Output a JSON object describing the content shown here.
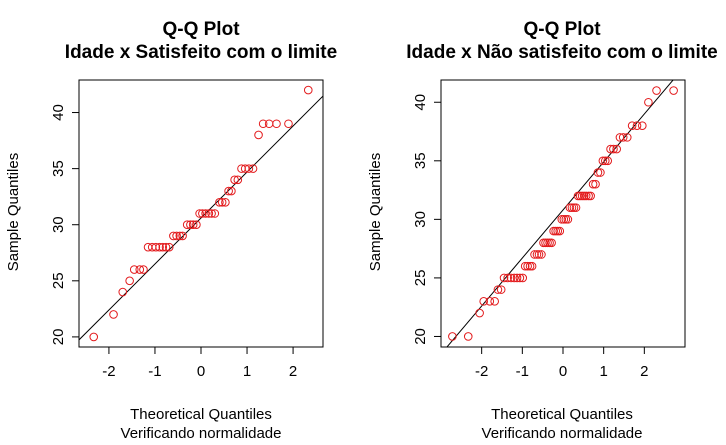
{
  "chart_data": [
    {
      "type": "scatter",
      "title": "Q-Q Plot",
      "subtitle": "Idade x Satisfeito com o limite",
      "xlabel": "Theoretical Quantiles",
      "xlabel_sub": "Verificando normalidade",
      "ylabel": "Sample Quantiles",
      "xlim": [
        -2.65,
        2.65
      ],
      "ylim": [
        19.1,
        42.9
      ],
      "xticks": [
        -2,
        -1,
        0,
        1,
        2
      ],
      "yticks": [
        20,
        25,
        30,
        35,
        40
      ],
      "grid": false,
      "point_color": "#e31a1c",
      "line_color": "#000000",
      "qqline": {
        "intercept": 30.6,
        "slope": 4.1
      },
      "points": [
        [
          -2.33,
          20
        ],
        [
          -1.9,
          22
        ],
        [
          -1.7,
          24
        ],
        [
          -1.55,
          25
        ],
        [
          -1.45,
          26
        ],
        [
          -1.33,
          26
        ],
        [
          -1.25,
          26
        ],
        [
          -1.15,
          28
        ],
        [
          -1.06,
          28
        ],
        [
          -0.98,
          28
        ],
        [
          -0.9,
          28
        ],
        [
          -0.83,
          28
        ],
        [
          -0.76,
          28
        ],
        [
          -0.69,
          28
        ],
        [
          -0.6,
          29
        ],
        [
          -0.53,
          29
        ],
        [
          -0.46,
          29
        ],
        [
          -0.4,
          29
        ],
        [
          -0.3,
          30
        ],
        [
          -0.23,
          30
        ],
        [
          -0.17,
          30
        ],
        [
          -0.1,
          30
        ],
        [
          -0.03,
          31
        ],
        [
          0.03,
          31
        ],
        [
          0.1,
          31
        ],
        [
          0.17,
          31
        ],
        [
          0.23,
          31
        ],
        [
          0.3,
          31
        ],
        [
          0.4,
          32
        ],
        [
          0.46,
          32
        ],
        [
          0.53,
          32
        ],
        [
          0.6,
          33
        ],
        [
          0.66,
          33
        ],
        [
          0.73,
          34
        ],
        [
          0.8,
          34
        ],
        [
          0.88,
          35
        ],
        [
          0.96,
          35
        ],
        [
          1.04,
          35
        ],
        [
          1.13,
          35
        ],
        [
          1.25,
          38
        ],
        [
          1.35,
          39
        ],
        [
          1.48,
          39
        ],
        [
          1.64,
          39
        ],
        [
          1.9,
          39
        ],
        [
          2.33,
          42
        ]
      ]
    },
    {
      "type": "scatter",
      "title": "Q-Q Plot",
      "subtitle": "Idade x Não satisfeito com o limite",
      "xlabel": "Theoretical Quantiles",
      "xlabel_sub": "Verificando normalidade",
      "ylabel": "Sample Quantiles",
      "xlim": [
        -3.0,
        3.0
      ],
      "ylim": [
        19.1,
        41.9
      ],
      "xticks": [
        -2,
        -1,
        0,
        1,
        2
      ],
      "yticks": [
        20,
        25,
        30,
        35,
        40
      ],
      "grid": false,
      "point_color": "#e31a1c",
      "line_color": "#000000",
      "qqline": {
        "intercept": 30.8,
        "slope": 4.1
      },
      "points": [
        [
          -2.72,
          20
        ],
        [
          -2.33,
          20
        ],
        [
          -2.05,
          22
        ],
        [
          -1.95,
          23
        ],
        [
          -1.8,
          23
        ],
        [
          -1.68,
          23
        ],
        [
          -1.6,
          24
        ],
        [
          -1.52,
          24
        ],
        [
          -1.45,
          25
        ],
        [
          -1.36,
          25
        ],
        [
          -1.28,
          25
        ],
        [
          -1.2,
          25
        ],
        [
          -1.13,
          25
        ],
        [
          -1.06,
          25
        ],
        [
          -0.99,
          25
        ],
        [
          -0.93,
          26
        ],
        [
          -0.87,
          26
        ],
        [
          -0.81,
          26
        ],
        [
          -0.76,
          26
        ],
        [
          -0.7,
          27
        ],
        [
          -0.64,
          27
        ],
        [
          -0.59,
          27
        ],
        [
          -0.53,
          27
        ],
        [
          -0.48,
          28
        ],
        [
          -0.43,
          28
        ],
        [
          -0.38,
          28
        ],
        [
          -0.33,
          28
        ],
        [
          -0.28,
          28
        ],
        [
          -0.23,
          29
        ],
        [
          -0.18,
          29
        ],
        [
          -0.13,
          29
        ],
        [
          -0.08,
          29
        ],
        [
          -0.03,
          30
        ],
        [
          0.02,
          30
        ],
        [
          0.07,
          30
        ],
        [
          0.12,
          30
        ],
        [
          0.17,
          31
        ],
        [
          0.22,
          31
        ],
        [
          0.27,
          31
        ],
        [
          0.32,
          31
        ],
        [
          0.37,
          32
        ],
        [
          0.42,
          32
        ],
        [
          0.47,
          32
        ],
        [
          0.52,
          32
        ],
        [
          0.57,
          32
        ],
        [
          0.63,
          32
        ],
        [
          0.68,
          32
        ],
        [
          0.74,
          33
        ],
        [
          0.8,
          33
        ],
        [
          0.86,
          34
        ],
        [
          0.92,
          34
        ],
        [
          0.98,
          35
        ],
        [
          1.04,
          35
        ],
        [
          1.1,
          35
        ],
        [
          1.17,
          36
        ],
        [
          1.24,
          36
        ],
        [
          1.32,
          36
        ],
        [
          1.4,
          37
        ],
        [
          1.48,
          37
        ],
        [
          1.58,
          37
        ],
        [
          1.7,
          38
        ],
        [
          1.82,
          38
        ],
        [
          1.95,
          38
        ],
        [
          2.1,
          40
        ],
        [
          2.3,
          41
        ],
        [
          2.72,
          41
        ]
      ]
    }
  ]
}
